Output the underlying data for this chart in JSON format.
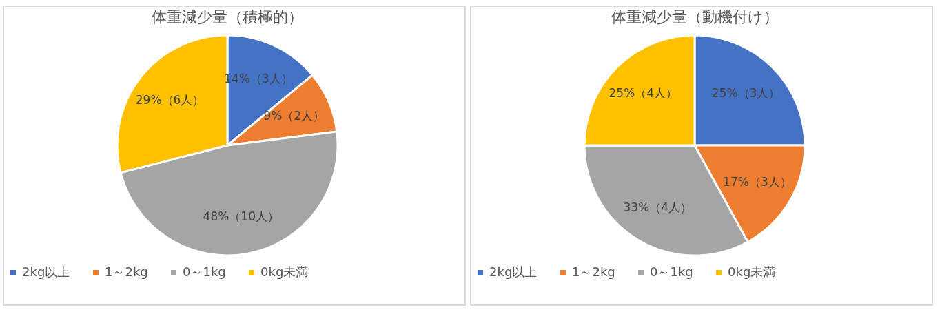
{
  "chart_data": [
    {
      "type": "pie",
      "title": "体重減少量（積極的）",
      "categories": [
        "2kg以上",
        "1～2kg",
        "0～1kg",
        "0kg未満"
      ],
      "values": [
        14,
        9,
        48,
        29
      ],
      "colors": [
        "#4472c4",
        "#ed7d31",
        "#a5a5a5",
        "#ffc000"
      ],
      "value_labels": [
        "14%（3人）",
        "9%（2人）",
        "48%（10人）",
        "29%（6人）"
      ],
      "legend": "bottom"
    },
    {
      "type": "pie",
      "title": "体重減少量（動機付け）",
      "categories": [
        "2kg以上",
        "1～2kg",
        "0～1kg",
        "0kg未満"
      ],
      "values": [
        25,
        17,
        33,
        25
      ],
      "colors": [
        "#4472c4",
        "#ed7d31",
        "#a5a5a5",
        "#ffc000"
      ],
      "value_labels": [
        "25%（3人）",
        "17%（3人）",
        "33%（4人）",
        "25%（4人）"
      ],
      "legend": "bottom"
    }
  ]
}
